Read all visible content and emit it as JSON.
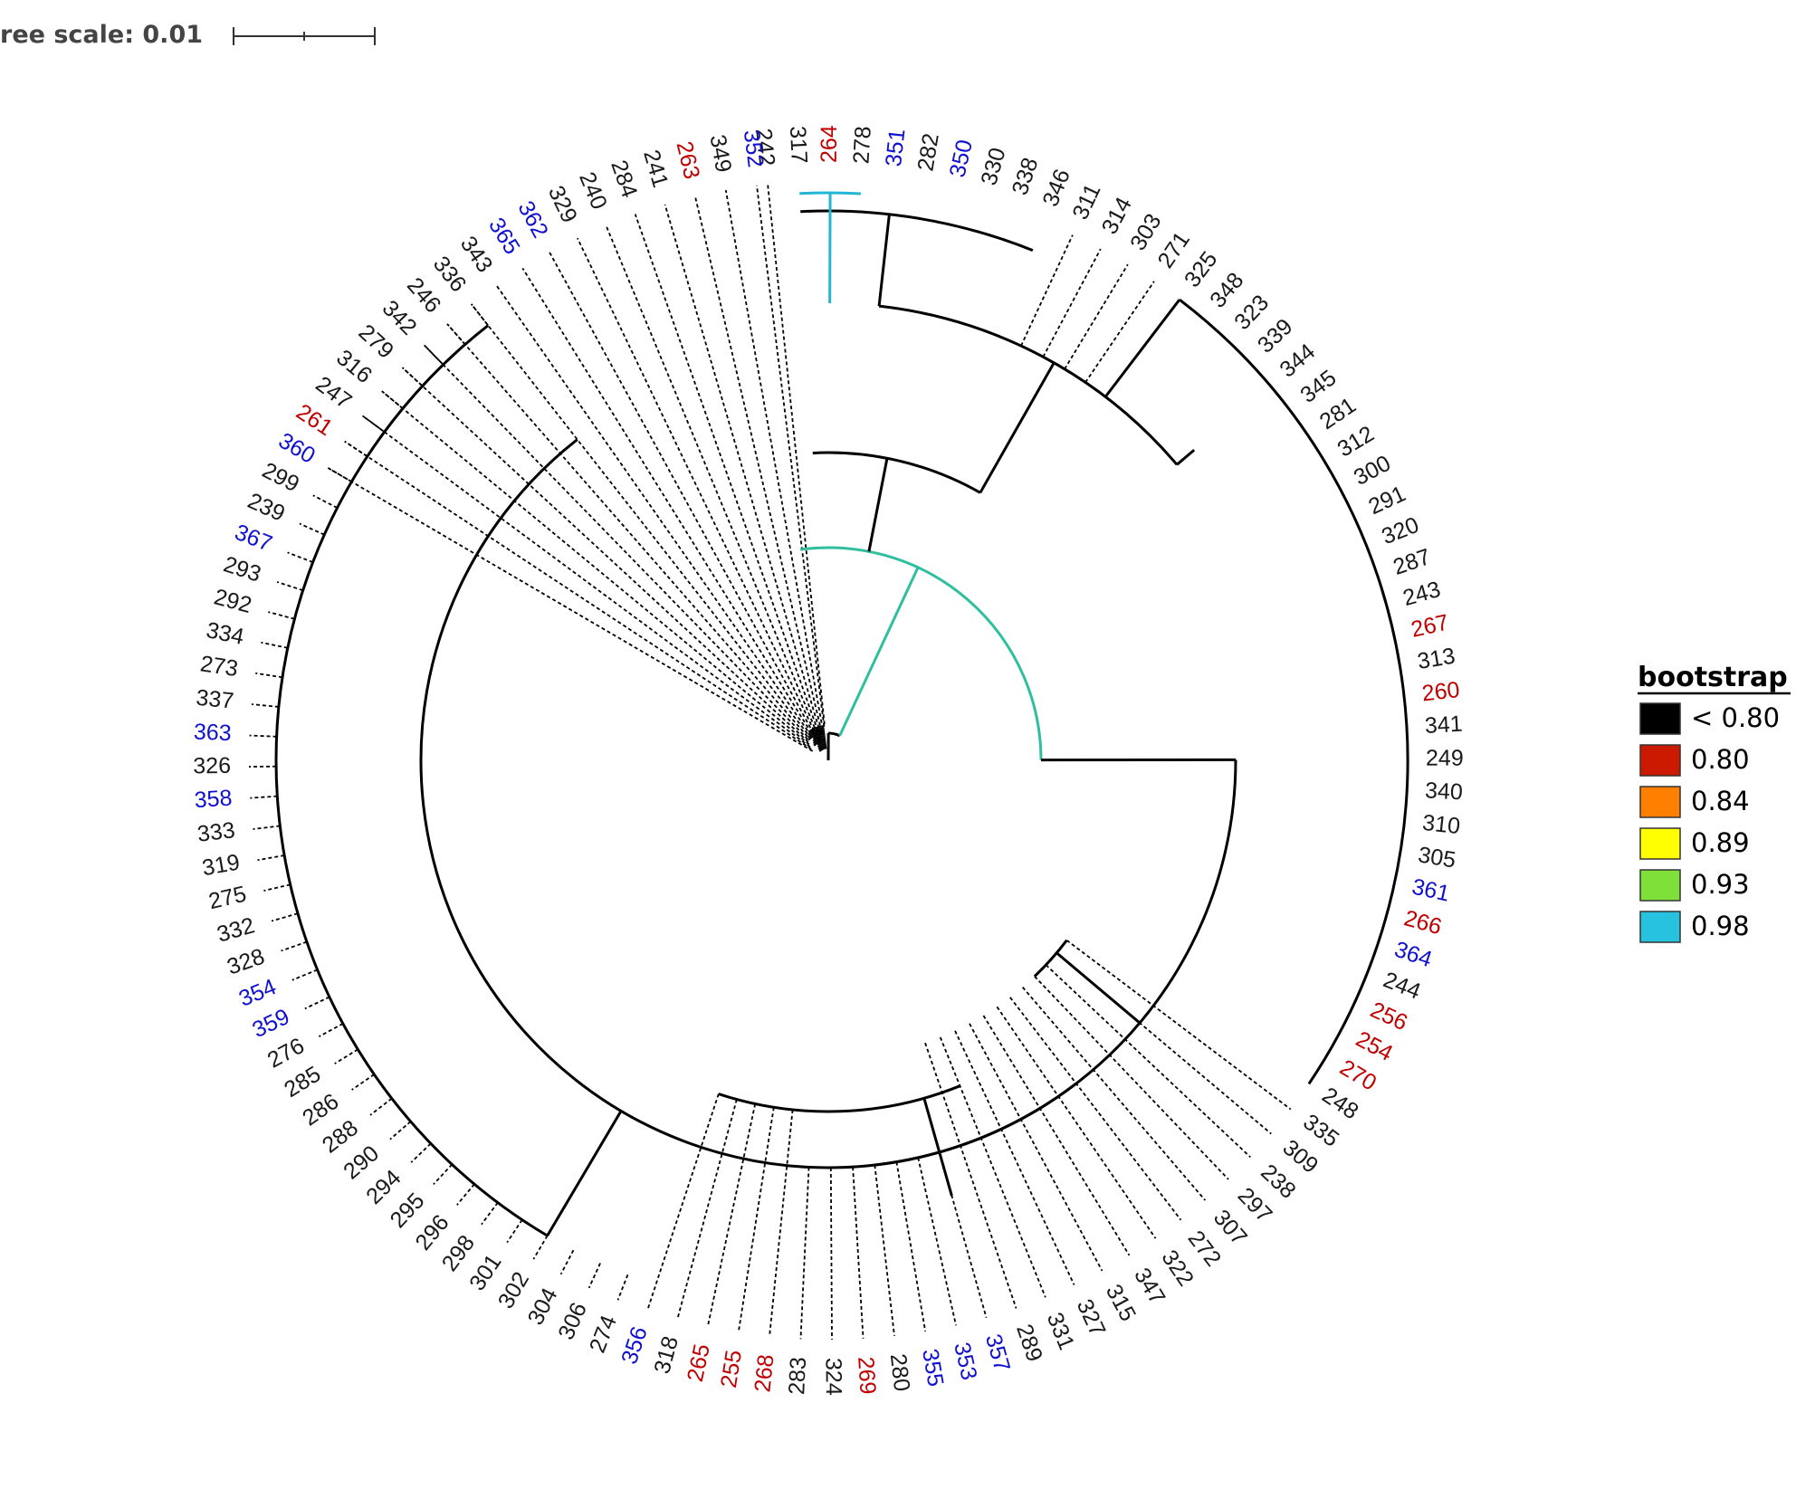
{
  "scale_bar": {
    "label": "ree scale: 0.01"
  },
  "legend": {
    "title": "bootstrap",
    "items": [
      {
        "label": "< 0.80",
        "color": "#000000"
      },
      {
        "label": "0.80",
        "color": "#cc1a00"
      },
      {
        "label": "0.84",
        "color": "#ff8000"
      },
      {
        "label": "0.89",
        "color": "#ffff00"
      },
      {
        "label": "0.93",
        "color": "#7fe03a"
      },
      {
        "label": "0.98",
        "color": "#27c2e0"
      }
    ]
  },
  "label_colors": {
    "black": "#1a1a1a",
    "red": "#c00000",
    "blue": "#1010d0"
  },
  "branch_colors": {
    "default": "#000000",
    "teal": "#2fbf9f",
    "cyan": "#22b5d5"
  },
  "leaves": [
    {
      "label": "242",
      "color": "black"
    },
    {
      "label": "317",
      "color": "black"
    },
    {
      "label": "264",
      "color": "red"
    },
    {
      "label": "278",
      "color": "black"
    },
    {
      "label": "351",
      "color": "blue"
    },
    {
      "label": "282",
      "color": "black"
    },
    {
      "label": "350",
      "color": "blue"
    },
    {
      "label": "330",
      "color": "black"
    },
    {
      "label": "338",
      "color": "black"
    },
    {
      "label": "346",
      "color": "black"
    },
    {
      "label": "311",
      "color": "black"
    },
    {
      "label": "314",
      "color": "black"
    },
    {
      "label": "303",
      "color": "black"
    },
    {
      "label": "271",
      "color": "black"
    },
    {
      "label": "325",
      "color": "black"
    },
    {
      "label": "348",
      "color": "black"
    },
    {
      "label": "323",
      "color": "black"
    },
    {
      "label": "339",
      "color": "black"
    },
    {
      "label": "344",
      "color": "black"
    },
    {
      "label": "345",
      "color": "black"
    },
    {
      "label": "281",
      "color": "black"
    },
    {
      "label": "312",
      "color": "black"
    },
    {
      "label": "300",
      "color": "black"
    },
    {
      "label": "291",
      "color": "black"
    },
    {
      "label": "320",
      "color": "black"
    },
    {
      "label": "287",
      "color": "black"
    },
    {
      "label": "243",
      "color": "black"
    },
    {
      "label": "267",
      "color": "red"
    },
    {
      "label": "313",
      "color": "black"
    },
    {
      "label": "260",
      "color": "red"
    },
    {
      "label": "341",
      "color": "black"
    },
    {
      "label": "249",
      "color": "black"
    },
    {
      "label": "340",
      "color": "black"
    },
    {
      "label": "310",
      "color": "black"
    },
    {
      "label": "305",
      "color": "black"
    },
    {
      "label": "361",
      "color": "blue"
    },
    {
      "label": "266",
      "color": "red"
    },
    {
      "label": "364",
      "color": "blue"
    },
    {
      "label": "244",
      "color": "black"
    },
    {
      "label": "256",
      "color": "red"
    },
    {
      "label": "254",
      "color": "red"
    },
    {
      "label": "270",
      "color": "red"
    },
    {
      "label": "248",
      "color": "black"
    },
    {
      "label": "335",
      "color": "black"
    },
    {
      "label": "309",
      "color": "black"
    },
    {
      "label": "238",
      "color": "black"
    },
    {
      "label": "297",
      "color": "black"
    },
    {
      "label": "307",
      "color": "black"
    },
    {
      "label": "272",
      "color": "black"
    },
    {
      "label": "322",
      "color": "black"
    },
    {
      "label": "347",
      "color": "black"
    },
    {
      "label": "315",
      "color": "black"
    },
    {
      "label": "327",
      "color": "black"
    },
    {
      "label": "331",
      "color": "black"
    },
    {
      "label": "289",
      "color": "black"
    },
    {
      "label": "357",
      "color": "blue"
    },
    {
      "label": "353",
      "color": "blue"
    },
    {
      "label": "355",
      "color": "blue"
    },
    {
      "label": "280",
      "color": "black"
    },
    {
      "label": "269",
      "color": "red"
    },
    {
      "label": "324",
      "color": "black"
    },
    {
      "label": "283",
      "color": "black"
    },
    {
      "label": "268",
      "color": "red"
    },
    {
      "label": "255",
      "color": "red"
    },
    {
      "label": "265",
      "color": "red"
    },
    {
      "label": "318",
      "color": "black"
    },
    {
      "label": "356",
      "color": "blue"
    },
    {
      "label": "274",
      "color": "black"
    },
    {
      "label": "306",
      "color": "black"
    },
    {
      "label": "304",
      "color": "black"
    },
    {
      "label": "302",
      "color": "black"
    },
    {
      "label": "301",
      "color": "black"
    },
    {
      "label": "298",
      "color": "black"
    },
    {
      "label": "296",
      "color": "black"
    },
    {
      "label": "295",
      "color": "black"
    },
    {
      "label": "294",
      "color": "black"
    },
    {
      "label": "290",
      "color": "black"
    },
    {
      "label": "288",
      "color": "black"
    },
    {
      "label": "286",
      "color": "black"
    },
    {
      "label": "285",
      "color": "black"
    },
    {
      "label": "276",
      "color": "black"
    },
    {
      "label": "359",
      "color": "blue"
    },
    {
      "label": "354",
      "color": "blue"
    },
    {
      "label": "328",
      "color": "black"
    },
    {
      "label": "332",
      "color": "black"
    },
    {
      "label": "275",
      "color": "black"
    },
    {
      "label": "319",
      "color": "black"
    },
    {
      "label": "333",
      "color": "black"
    },
    {
      "label": "358",
      "color": "blue"
    },
    {
      "label": "326",
      "color": "black"
    },
    {
      "label": "363",
      "color": "blue"
    },
    {
      "label": "337",
      "color": "black"
    },
    {
      "label": "273",
      "color": "black"
    },
    {
      "label": "334",
      "color": "black"
    },
    {
      "label": "292",
      "color": "black"
    },
    {
      "label": "293",
      "color": "black"
    },
    {
      "label": "367",
      "color": "blue"
    },
    {
      "label": "239",
      "color": "black"
    },
    {
      "label": "299",
      "color": "black"
    },
    {
      "label": "360",
      "color": "blue"
    },
    {
      "label": "261",
      "color": "red"
    },
    {
      "label": "247",
      "color": "black"
    },
    {
      "label": "316",
      "color": "black"
    },
    {
      "label": "279",
      "color": "black"
    },
    {
      "label": "342",
      "color": "black"
    },
    {
      "label": "246",
      "color": "black"
    },
    {
      "label": "336",
      "color": "black"
    },
    {
      "label": "343",
      "color": "black"
    },
    {
      "label": "365",
      "color": "blue"
    },
    {
      "label": "362",
      "color": "blue"
    },
    {
      "label": "329",
      "color": "black"
    },
    {
      "label": "240",
      "color": "black"
    },
    {
      "label": "284",
      "color": "black"
    },
    {
      "label": "241",
      "color": "black"
    },
    {
      "label": "263",
      "color": "red"
    },
    {
      "label": "349",
      "color": "black"
    },
    {
      "label": "352",
      "color": "blue"
    }
  ]
}
